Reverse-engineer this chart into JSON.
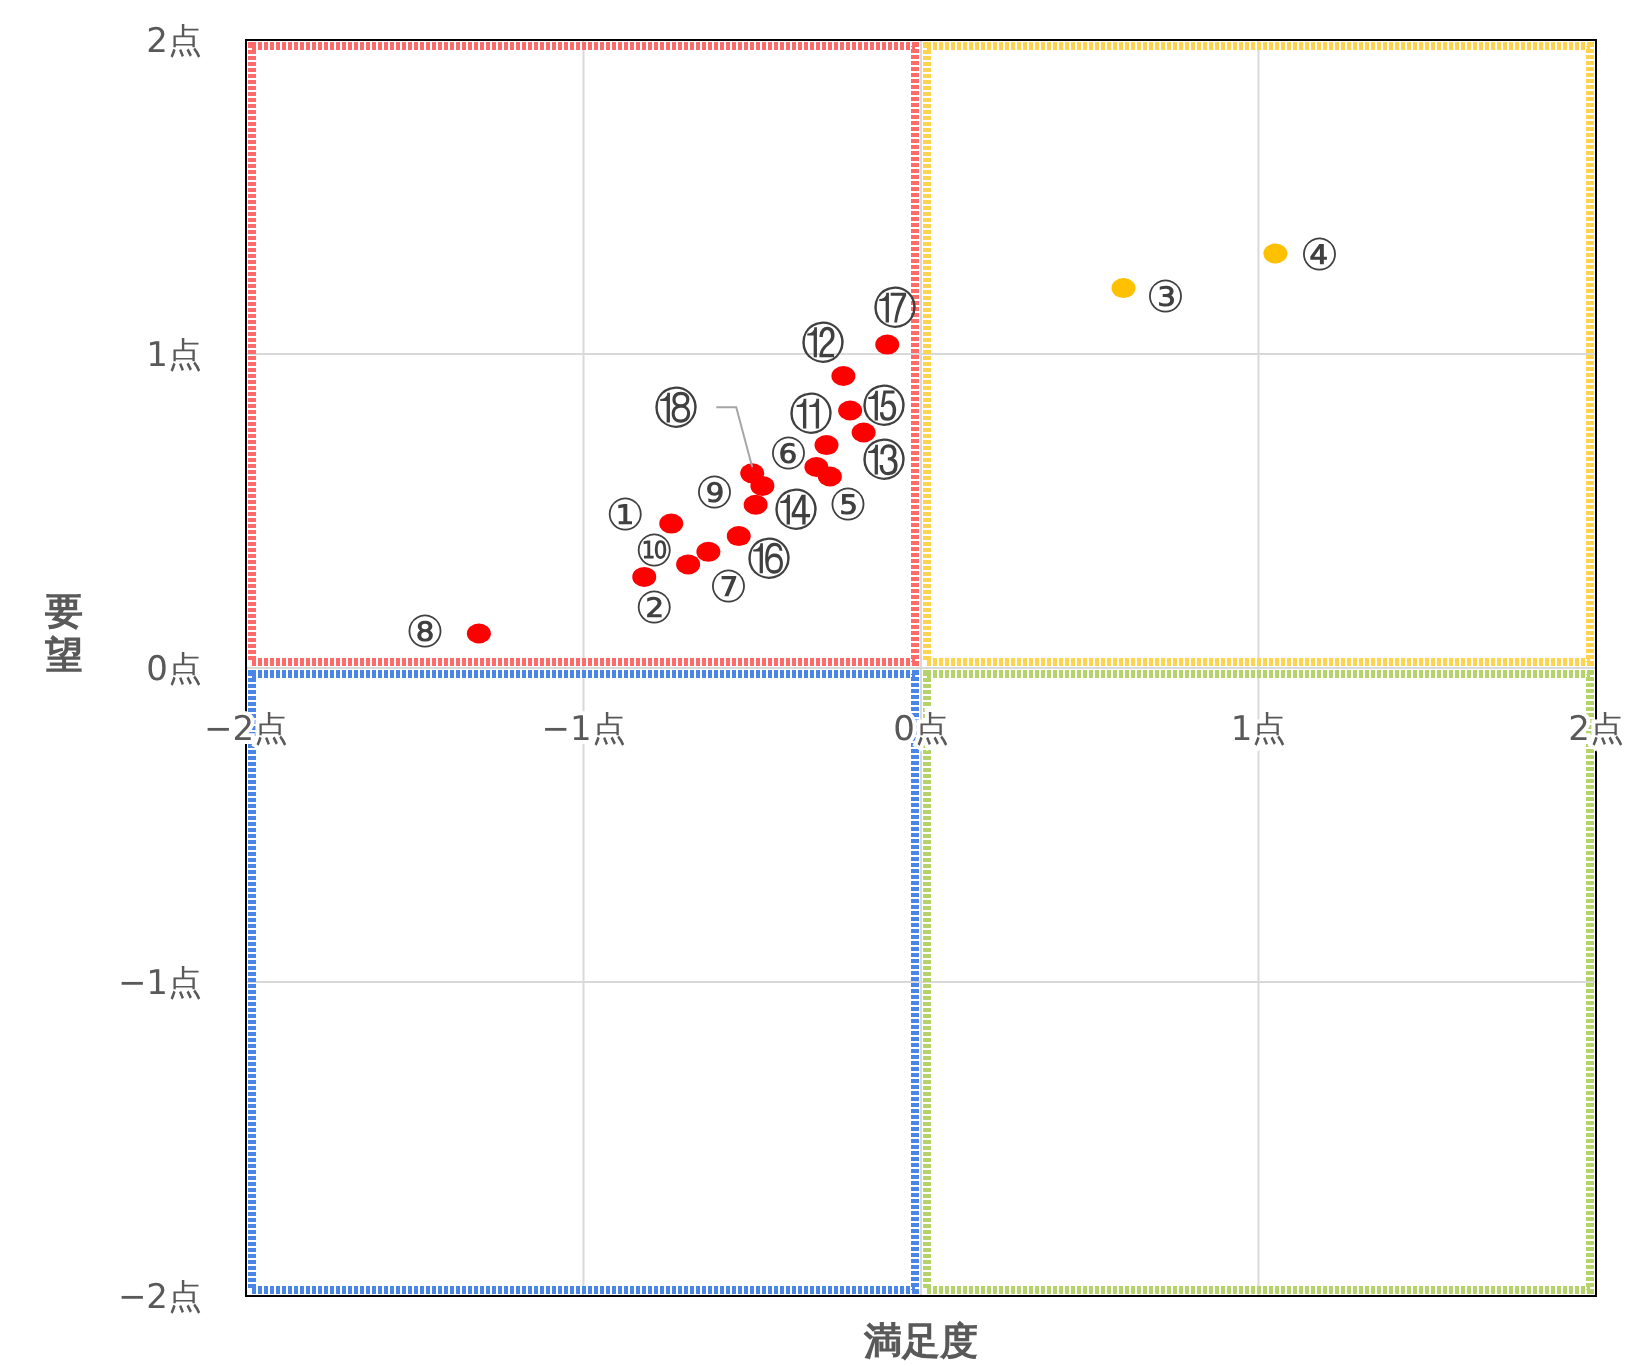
{
  "chart_data": {
    "type": "scatter",
    "xlabel": "満足度",
    "ylabel": "要望",
    "xlim": [
      -2,
      2
    ],
    "ylim": [
      -2,
      2
    ],
    "xticks": [
      {
        "value": -2,
        "label": "−2点"
      },
      {
        "value": -1,
        "label": "−1点"
      },
      {
        "value": 0,
        "label": "0点"
      },
      {
        "value": 1,
        "label": "1点"
      },
      {
        "value": 2,
        "label": "2点"
      }
    ],
    "yticks": [
      {
        "value": -2,
        "label": "−2点"
      },
      {
        "value": -1,
        "label": "−1点"
      },
      {
        "value": 0,
        "label": "0点"
      },
      {
        "value": 1,
        "label": "1点"
      },
      {
        "value": 2,
        "label": "2点"
      }
    ],
    "grid": true,
    "marker": "circle",
    "series": [
      {
        "color": "#ff0000",
        "x": [
          -0.74,
          -0.82,
          -0.27,
          -0.31,
          -0.63,
          -1.31,
          -0.47,
          -0.69,
          -0.28,
          -0.23,
          -0.17,
          -0.49,
          -0.21,
          -0.54,
          -0.1,
          -0.5
        ],
        "values": [
          0.46,
          0.29,
          0.61,
          0.64,
          0.37,
          0.11,
          0.58,
          0.33,
          0.71,
          0.93,
          0.75,
          0.52,
          0.82,
          0.42,
          1.03,
          0.62
        ]
      },
      {
        "color": "#ffc000",
        "x": [
          0.6,
          1.05
        ],
        "values": [
          1.21,
          1.32
        ]
      }
    ],
    "annotations": [
      {
        "text": "①",
        "x": -0.74,
        "y": 0.46
      },
      {
        "text": "②",
        "x": -0.82,
        "y": 0.29
      },
      {
        "text": "③",
        "x": 0.6,
        "y": 1.21
      },
      {
        "text": "④",
        "x": 1.05,
        "y": 1.32
      },
      {
        "text": "⑤",
        "x": -0.27,
        "y": 0.61
      },
      {
        "text": "⑥",
        "x": -0.31,
        "y": 0.64
      },
      {
        "text": "⑦",
        "x": -0.63,
        "y": 0.37
      },
      {
        "text": "⑧",
        "x": -1.31,
        "y": 0.11
      },
      {
        "text": "⑨",
        "x": -0.47,
        "y": 0.58
      },
      {
        "text": "⑩",
        "x": -0.69,
        "y": 0.33
      },
      {
        "text": "⑪",
        "x": -0.28,
        "y": 0.71
      },
      {
        "text": "⑫",
        "x": -0.23,
        "y": 0.93
      },
      {
        "text": "⑬",
        "x": -0.17,
        "y": 0.75
      },
      {
        "text": "⑭",
        "x": -0.49,
        "y": 0.52
      },
      {
        "text": "⑮",
        "x": -0.21,
        "y": 0.82
      },
      {
        "text": "⑯",
        "x": -0.54,
        "y": 0.42
      },
      {
        "text": "⑰",
        "x": -0.1,
        "y": 1.03
      },
      {
        "text": "⑱",
        "x": -0.5,
        "y": 0.62
      }
    ]
  }
}
